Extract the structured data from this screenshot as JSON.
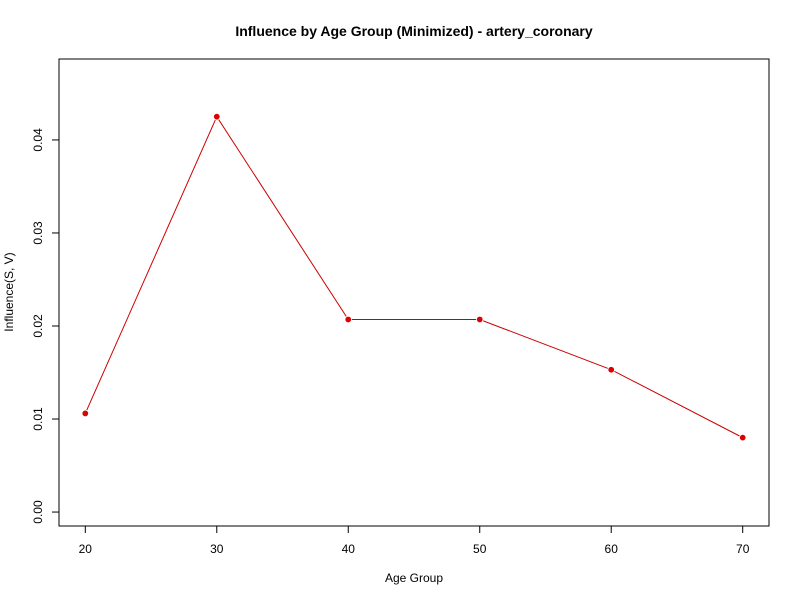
{
  "chart_data": {
    "type": "line",
    "title": "Influence by Age Group (Minimized) - artery_coronary",
    "xlabel": "Age Group",
    "ylabel": "Influence(S, V)",
    "x": [
      20,
      30,
      40,
      50,
      60,
      70
    ],
    "series": [
      {
        "values": [
          0.0106,
          0.0425,
          0.0207,
          0.0207,
          0.0153,
          0.008
        ]
      }
    ],
    "xlim": [
      18,
      72
    ],
    "ylim": [
      -0.0015,
      0.0487
    ],
    "xticks": [
      20,
      30,
      40,
      50,
      60,
      70
    ],
    "yticks": [
      0.0,
      0.01,
      0.02,
      0.03,
      0.04
    ],
    "ytick_labels": [
      "0.00",
      "0.01",
      "0.02",
      "0.03",
      "0.04"
    ],
    "grid": false,
    "line_color": "#cc0000",
    "marker_color": "#dd0000"
  }
}
